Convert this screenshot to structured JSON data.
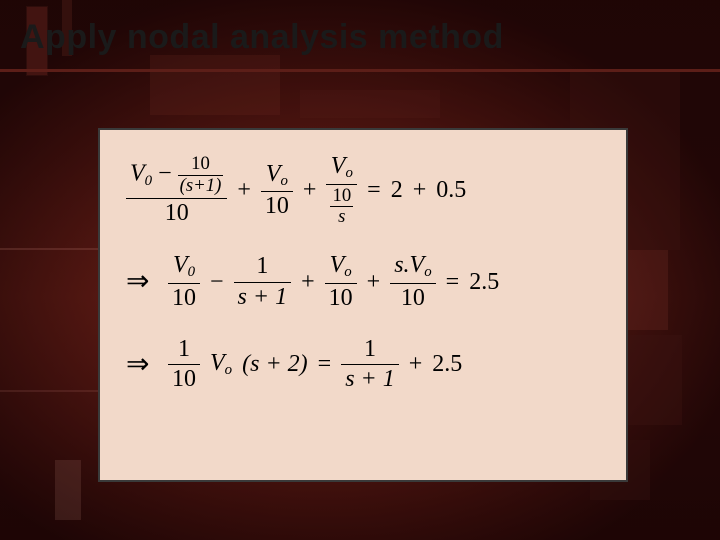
{
  "title": "Apply nodal analysis method",
  "colors": {
    "panel_bg": "#f2d9c9",
    "panel_border": "#3a3a3a",
    "title_underline": "#5c1e18",
    "text": "#000000",
    "slide_bg_stops": [
      "#2a0a08",
      "#3a1210",
      "#5a1f18",
      "#3a1210",
      "#1a0605"
    ]
  },
  "typography": {
    "title_font": "Verdana",
    "title_size_pt": 26,
    "title_weight": "bold",
    "math_font": "Times New Roman",
    "math_size_pt": 18,
    "math_style": "italic"
  },
  "eq1": {
    "t1_V": "V",
    "t1_sub": "0",
    "t1_minus": " − ",
    "t1_inner_num": "10",
    "t1_inner_den": "(s+1)",
    "t1_den": "10",
    "plus1": " + ",
    "t2_V": "V",
    "t2_sub": "o",
    "t2_den": "10",
    "plus2": " + ",
    "t3_V": "V",
    "t3_sub": "o",
    "t3_inner_num": "10",
    "t3_inner_den": "s",
    "eq": " = ",
    "rhs_a": "2",
    "rhs_plus": " + ",
    "rhs_b": "0.5"
  },
  "eq2": {
    "arrow": "⇒",
    "t1_V": "V",
    "t1_sub": "0",
    "t1_den": "10",
    "minus": " − ",
    "t2_num": "1",
    "t2_den": "s + 1",
    "plus1": " + ",
    "t3_V": "V",
    "t3_sub": "o",
    "t3_den": "10",
    "plus2": " + ",
    "t4_num_s": "s.",
    "t4_V": "V",
    "t4_sub": "o",
    "t4_den": "10",
    "eq": " = ",
    "rhs": "2.5"
  },
  "eq3": {
    "arrow": "⇒",
    "t1_num": "1",
    "t1_den": "10",
    "V": "V",
    "V_sub": "o",
    "paren": "(s + 2)",
    "eq": " = ",
    "r_num": "1",
    "r_den": "s + 1",
    "plus": " + ",
    "r_const": "2.5"
  }
}
